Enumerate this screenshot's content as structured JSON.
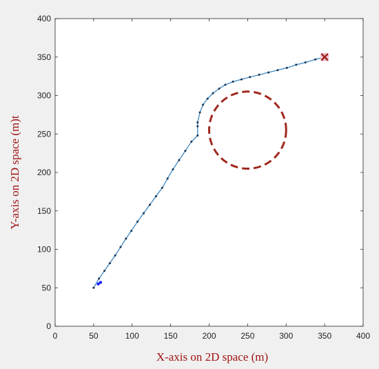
{
  "chart_data": {
    "type": "line",
    "title": "",
    "xlabel": "X-axis on 2D space (m)",
    "ylabel": "Y-axis on 2D space (m)t",
    "xlim": [
      0,
      400
    ],
    "ylim": [
      0,
      400
    ],
    "xticks": [
      0,
      50,
      100,
      150,
      200,
      250,
      300,
      350,
      400
    ],
    "yticks": [
      0,
      50,
      100,
      150,
      200,
      250,
      300,
      350,
      400
    ],
    "grid": false,
    "colors": {
      "figure_background": "#f0f0f0",
      "plot_background": "#ffffff",
      "path_line": "#4a8fc4",
      "path_marker": "#16324f",
      "start_marker": "#1a1aff",
      "goal_marker": "#a0281e",
      "goal_halo": "#f2c4d6",
      "obstacle": "#a0281e",
      "axis_title": "#a01414"
    },
    "series": [
      {
        "role": "path",
        "x": [
          50,
          57,
          64,
          71,
          78,
          85,
          92,
          99,
          107,
          115,
          123,
          131,
          139,
          146,
          153,
          161,
          169,
          177,
          185,
          185,
          185,
          188,
          192,
          198,
          205,
          213,
          221,
          231,
          242,
          253,
          265,
          277,
          289,
          301,
          313,
          325,
          338,
          350
        ],
        "y": [
          50,
          62,
          72,
          82,
          92,
          103,
          114,
          124,
          136,
          147,
          158,
          169,
          180,
          192,
          204,
          216,
          228,
          240,
          248,
          260,
          265,
          278,
          288,
          296,
          303,
          309,
          314,
          318,
          321,
          324,
          327,
          330,
          333,
          336,
          340,
          343,
          347,
          350
        ]
      },
      {
        "role": "start",
        "x": [
          56,
          59
        ],
        "y": [
          55,
          57
        ]
      },
      {
        "role": "goal",
        "x": [
          350
        ],
        "y": [
          350
        ]
      }
    ],
    "obstacles": [
      {
        "cx": 250,
        "cy": 255,
        "r": 50
      }
    ]
  }
}
